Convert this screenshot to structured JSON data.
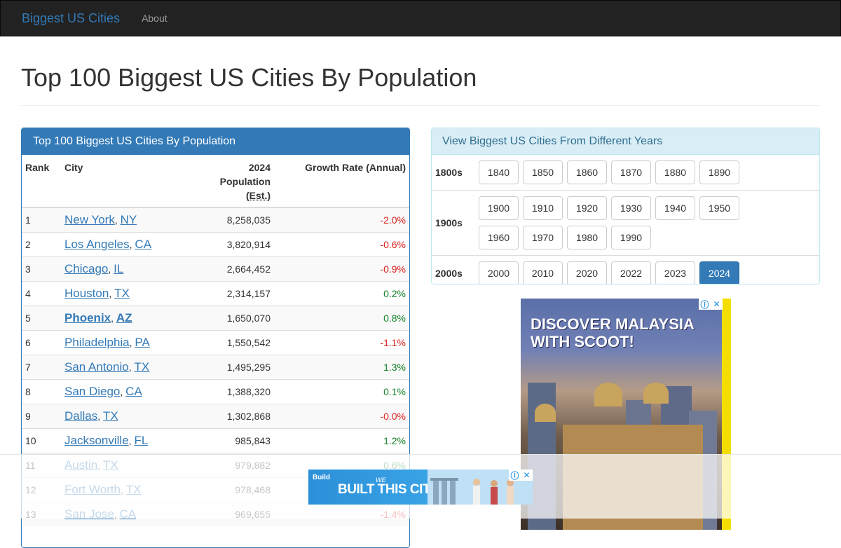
{
  "navbar": {
    "brand": "Biggest US Cities",
    "about": "About"
  },
  "page_title": "Top 100 Biggest US Cities By Population",
  "table_panel": {
    "heading": "Top 100 Biggest US Cities By Population",
    "columns": {
      "rank": "Rank",
      "city": "City",
      "pop_line1": "2024",
      "pop_line2": "Population",
      "pop_line3": "(Est.)",
      "growth": "Growth Rate (Annual)"
    },
    "rows": [
      {
        "rank": "1",
        "city": "New York",
        "state": "NY",
        "population": "8,258,035",
        "growth": "-2.0%"
      },
      {
        "rank": "2",
        "city": "Los Angeles",
        "state": "CA",
        "population": "3,820,914",
        "growth": "-0.6%"
      },
      {
        "rank": "3",
        "city": "Chicago",
        "state": "IL",
        "population": "2,664,452",
        "growth": "-0.9%"
      },
      {
        "rank": "4",
        "city": "Houston",
        "state": "TX",
        "population": "2,314,157",
        "growth": "0.2%"
      },
      {
        "rank": "5",
        "city": "Phoenix",
        "state": "AZ",
        "population": "1,650,070",
        "growth": "0.8%"
      },
      {
        "rank": "6",
        "city": "Philadelphia",
        "state": "PA",
        "population": "1,550,542",
        "growth": "-1.1%"
      },
      {
        "rank": "7",
        "city": "San Antonio",
        "state": "TX",
        "population": "1,495,295",
        "growth": "1.3%"
      },
      {
        "rank": "8",
        "city": "San Diego",
        "state": "CA",
        "population": "1,388,320",
        "growth": "0.1%"
      },
      {
        "rank": "9",
        "city": "Dallas",
        "state": "TX",
        "population": "1,302,868",
        "growth": "-0.0%"
      },
      {
        "rank": "10",
        "city": "Jacksonville",
        "state": "FL",
        "population": "985,843",
        "growth": "1.2%"
      },
      {
        "rank": "11",
        "city": "Austin",
        "state": "TX",
        "population": "979,882",
        "growth": "0.6%"
      },
      {
        "rank": "12",
        "city": "Fort Worth",
        "state": "TX",
        "population": "978,468",
        "growth": ""
      },
      {
        "rank": "13",
        "city": "San Jose",
        "state": "CA",
        "population": "969,655",
        "growth": "-1.4%"
      }
    ]
  },
  "years_panel": {
    "heading": "View Biggest US Cities From Different Years",
    "decades": [
      {
        "label": "1800s",
        "years": [
          "1840",
          "1850",
          "1860",
          "1870",
          "1880",
          "1890"
        ]
      },
      {
        "label": "1900s",
        "years": [
          "1900",
          "1910",
          "1920",
          "1930",
          "1940",
          "1950",
          "1960",
          "1970",
          "1980",
          "1990"
        ]
      },
      {
        "label": "2000s",
        "years": [
          "2000",
          "2010",
          "2020",
          "2022",
          "2023",
          "2024"
        ]
      }
    ],
    "active_year": "2024"
  },
  "ads": {
    "side": {
      "headline_line1": "DISCOVER MALAYSIA",
      "headline_line2": "WITH SCOOT!",
      "info_icon": "info-icon",
      "close_icon": "close-icon"
    },
    "bottom": {
      "logo": "Build",
      "we": "WE",
      "headline": "BUILT THIS CITY"
    }
  },
  "colors": {
    "primary": "#337ab7",
    "navbar": "#222222",
    "info_bg": "#d9edf7",
    "negative": "#d9211e",
    "positive": "#15802a"
  }
}
